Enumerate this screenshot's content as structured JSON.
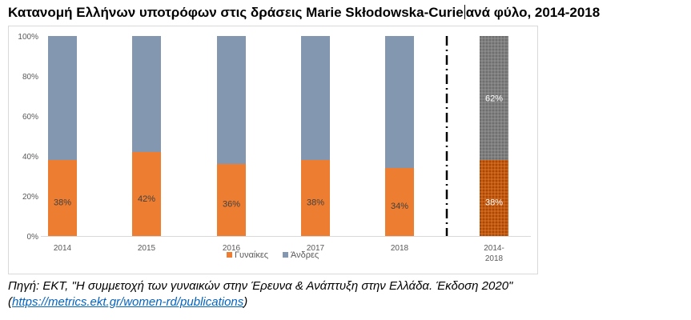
{
  "title_before_cursor": "Κατανομή Ελλήνων υποτρόφων στις δράσεις Marie Skłodowska-Curie",
  "title_after_cursor": "ανά φύλο, 2014-2018",
  "chart_data": {
    "type": "bar",
    "stacked": true,
    "percent": true,
    "categories": [
      "2014",
      "2015",
      "2016",
      "2017",
      "2018",
      "2014-2018"
    ],
    "category_lines": [
      [
        "2014"
      ],
      [
        "2015"
      ],
      [
        "2016"
      ],
      [
        "2017"
      ],
      [
        "2018"
      ],
      [
        "2014-",
        "2018"
      ]
    ],
    "series": [
      {
        "name": "Γυναίκες",
        "color": "#ed7d31",
        "values": [
          38,
          42,
          36,
          38,
          34,
          38
        ],
        "labels": [
          "38%",
          "42%",
          "36%",
          "38%",
          "34%",
          "38%"
        ]
      },
      {
        "name": "Άνδρες",
        "color": "#8497b0",
        "values": [
          62,
          58,
          64,
          62,
          66,
          62
        ],
        "labels": [
          "",
          "",
          "",
          "",
          "",
          "62%"
        ]
      }
    ],
    "ylim": [
      0,
      100
    ],
    "y_ticks": [
      "0%",
      "20%",
      "40%",
      "60%",
      "80%",
      "100%"
    ],
    "grid": false,
    "legend_position": "bottom",
    "separator": "dash-dot vertical line before 2014-2018",
    "last_bar_pattern": "dotted"
  },
  "source": {
    "text": "Πηγή: ΕΚΤ, \"Η συμμετοχή των γυναικών στην Έρευνα & Ανάπτυξη στην Ελλάδα. Έκδοση 2020\"",
    "link_open": "(",
    "link_text": "https://metrics.ekt.gr/women-rd/publications",
    "link_close": ")"
  }
}
